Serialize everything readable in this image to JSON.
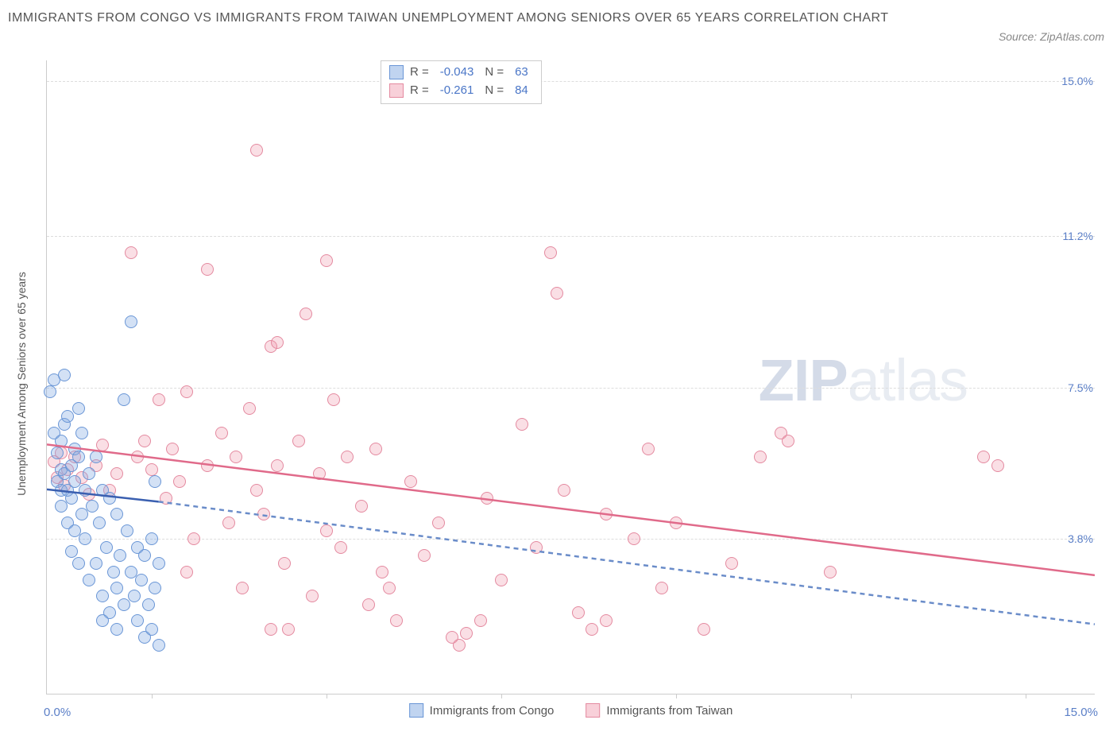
{
  "title": "IMMIGRANTS FROM CONGO VS IMMIGRANTS FROM TAIWAN UNEMPLOYMENT AMONG SENIORS OVER 65 YEARS CORRELATION CHART",
  "source_label": "Source: ZipAtlas.com",
  "watermark": {
    "bold": "ZIP",
    "light": "atlas"
  },
  "y_axis_title": "Unemployment Among Seniors over 65 years",
  "x_axis": {
    "min": 0.0,
    "max": 15.0,
    "left_label": "0.0%",
    "right_label": "15.0%",
    "tick_xs": [
      1.5,
      4.0,
      6.5,
      9.0,
      11.5,
      14.0
    ]
  },
  "y_axis": {
    "min": 0.0,
    "max": 15.5,
    "ticks": [
      {
        "v": 15.0,
        "label": "15.0%"
      },
      {
        "v": 11.2,
        "label": "11.2%"
      },
      {
        "v": 7.5,
        "label": "7.5%"
      },
      {
        "v": 3.8,
        "label": "3.8%"
      }
    ]
  },
  "grid_color": "#dddddd",
  "legend_stats": {
    "congo": {
      "r_label": "R =",
      "r": "-0.043",
      "n_label": "N =",
      "n": "63"
    },
    "taiwan": {
      "r_label": "R =",
      "r": "-0.261",
      "n_label": "N =",
      "n": "84"
    }
  },
  "bottom_legend": {
    "congo": "Immigrants from Congo",
    "taiwan": "Immigrants from Taiwan"
  },
  "series": {
    "congo": {
      "color_fill": "rgba(130,170,225,0.35)",
      "color_stroke": "#6a96d6",
      "trend": {
        "x1": 0.0,
        "y1": 5.0,
        "x2": 1.6,
        "y2": 4.7,
        "solid": true,
        "dash_x1": 1.6,
        "dash_y1": 4.7,
        "dash_x2": 15.0,
        "dash_y2": 1.7
      },
      "points": [
        [
          0.05,
          7.4
        ],
        [
          0.1,
          7.7
        ],
        [
          0.1,
          6.4
        ],
        [
          0.15,
          5.9
        ],
        [
          0.15,
          5.2
        ],
        [
          0.2,
          6.2
        ],
        [
          0.2,
          5.5
        ],
        [
          0.2,
          5.0
        ],
        [
          0.2,
          4.6
        ],
        [
          0.25,
          7.8
        ],
        [
          0.25,
          6.6
        ],
        [
          0.25,
          5.4
        ],
        [
          0.3,
          6.8
        ],
        [
          0.3,
          5.0
        ],
        [
          0.3,
          4.2
        ],
        [
          0.35,
          5.6
        ],
        [
          0.35,
          4.8
        ],
        [
          0.35,
          3.5
        ],
        [
          0.4,
          6.0
        ],
        [
          0.4,
          5.2
        ],
        [
          0.4,
          4.0
        ],
        [
          0.45,
          7.0
        ],
        [
          0.45,
          5.8
        ],
        [
          0.45,
          3.2
        ],
        [
          0.5,
          6.4
        ],
        [
          0.5,
          4.4
        ],
        [
          0.55,
          5.0
        ],
        [
          0.55,
          3.8
        ],
        [
          0.6,
          5.4
        ],
        [
          0.6,
          2.8
        ],
        [
          0.65,
          4.6
        ],
        [
          0.7,
          5.8
        ],
        [
          0.7,
          3.2
        ],
        [
          0.75,
          4.2
        ],
        [
          0.8,
          5.0
        ],
        [
          0.8,
          2.4
        ],
        [
          0.85,
          3.6
        ],
        [
          0.9,
          4.8
        ],
        [
          0.9,
          2.0
        ],
        [
          0.95,
          3.0
        ],
        [
          1.0,
          4.4
        ],
        [
          1.0,
          2.6
        ],
        [
          1.05,
          3.4
        ],
        [
          1.1,
          7.2
        ],
        [
          1.1,
          2.2
        ],
        [
          1.15,
          4.0
        ],
        [
          1.2,
          9.1
        ],
        [
          1.2,
          3.0
        ],
        [
          1.25,
          2.4
        ],
        [
          1.3,
          3.6
        ],
        [
          1.3,
          1.8
        ],
        [
          1.35,
          2.8
        ],
        [
          1.4,
          3.4
        ],
        [
          1.4,
          1.4
        ],
        [
          1.45,
          2.2
        ],
        [
          1.5,
          3.8
        ],
        [
          1.5,
          1.6
        ],
        [
          1.55,
          5.2
        ],
        [
          1.55,
          2.6
        ],
        [
          1.6,
          3.2
        ],
        [
          1.6,
          1.2
        ],
        [
          1.0,
          1.6
        ],
        [
          0.8,
          1.8
        ]
      ]
    },
    "taiwan": {
      "color_fill": "rgba(240,150,170,0.30)",
      "color_stroke": "#e48aa0",
      "trend": {
        "x1": 0.0,
        "y1": 6.1,
        "x2": 15.0,
        "y2": 2.9,
        "solid": true
      },
      "points": [
        [
          0.1,
          5.7
        ],
        [
          0.15,
          5.3
        ],
        [
          0.2,
          5.9
        ],
        [
          0.25,
          5.1
        ],
        [
          0.3,
          5.5
        ],
        [
          0.4,
          5.8
        ],
        [
          0.5,
          5.3
        ],
        [
          0.6,
          4.9
        ],
        [
          0.7,
          5.6
        ],
        [
          0.8,
          6.1
        ],
        [
          0.9,
          5.0
        ],
        [
          1.0,
          5.4
        ],
        [
          1.2,
          10.8
        ],
        [
          1.3,
          5.8
        ],
        [
          1.4,
          6.2
        ],
        [
          1.5,
          5.5
        ],
        [
          1.6,
          7.2
        ],
        [
          1.7,
          4.8
        ],
        [
          1.8,
          6.0
        ],
        [
          1.9,
          5.2
        ],
        [
          2.0,
          7.4
        ],
        [
          2.1,
          3.8
        ],
        [
          2.3,
          10.4
        ],
        [
          2.3,
          5.6
        ],
        [
          2.5,
          6.4
        ],
        [
          2.6,
          4.2
        ],
        [
          2.7,
          5.8
        ],
        [
          2.8,
          2.6
        ],
        [
          2.9,
          7.0
        ],
        [
          3.0,
          13.3
        ],
        [
          3.0,
          5.0
        ],
        [
          3.1,
          4.4
        ],
        [
          3.2,
          8.5
        ],
        [
          3.3,
          5.6
        ],
        [
          3.3,
          8.6
        ],
        [
          3.4,
          3.2
        ],
        [
          3.45,
          1.6
        ],
        [
          3.6,
          6.2
        ],
        [
          3.7,
          9.3
        ],
        [
          3.8,
          2.4
        ],
        [
          3.9,
          5.4
        ],
        [
          4.0,
          10.6
        ],
        [
          4.0,
          4.0
        ],
        [
          4.1,
          7.2
        ],
        [
          4.2,
          3.6
        ],
        [
          4.3,
          5.8
        ],
        [
          4.5,
          4.6
        ],
        [
          4.6,
          2.2
        ],
        [
          4.7,
          6.0
        ],
        [
          4.8,
          3.0
        ],
        [
          4.9,
          2.6
        ],
        [
          5.0,
          1.8
        ],
        [
          5.2,
          5.2
        ],
        [
          5.4,
          3.4
        ],
        [
          5.6,
          4.2
        ],
        [
          5.8,
          1.4
        ],
        [
          5.9,
          1.2
        ],
        [
          6.0,
          1.5
        ],
        [
          6.2,
          1.8
        ],
        [
          6.3,
          4.8
        ],
        [
          6.5,
          2.8
        ],
        [
          6.8,
          6.6
        ],
        [
          7.0,
          3.6
        ],
        [
          7.2,
          10.8
        ],
        [
          7.3,
          9.8
        ],
        [
          7.4,
          5.0
        ],
        [
          7.6,
          2.0
        ],
        [
          7.8,
          1.6
        ],
        [
          8.0,
          4.4
        ],
        [
          8.0,
          1.8
        ],
        [
          8.4,
          3.8
        ],
        [
          8.6,
          6.0
        ],
        [
          8.8,
          2.6
        ],
        [
          9.0,
          4.2
        ],
        [
          9.4,
          1.6
        ],
        [
          9.8,
          3.2
        ],
        [
          10.2,
          5.8
        ],
        [
          10.5,
          6.4
        ],
        [
          10.6,
          6.2
        ],
        [
          11.2,
          3.0
        ],
        [
          13.4,
          5.8
        ],
        [
          13.6,
          5.6
        ],
        [
          3.2,
          1.6
        ],
        [
          2.0,
          3.0
        ]
      ]
    }
  }
}
